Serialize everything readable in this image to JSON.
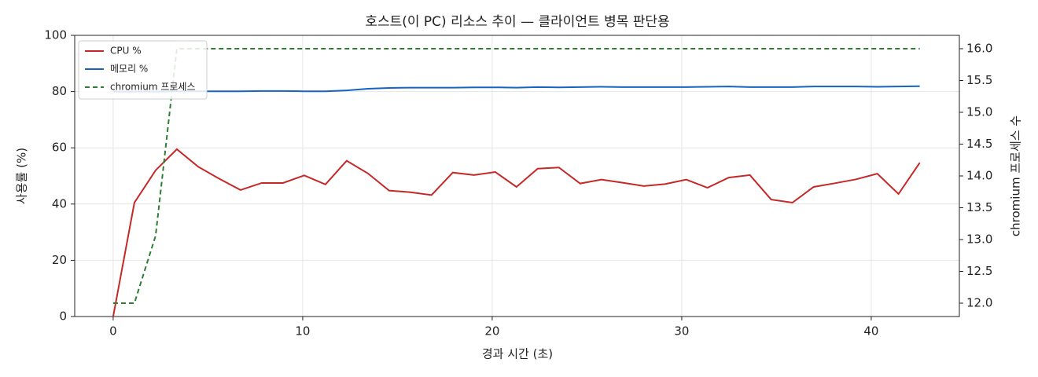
{
  "chart_data": {
    "type": "line",
    "title": "호스트(이 PC) 리소스 추이 — 클라이언트 병목 판단용",
    "x_label": "경과 시간 (초)",
    "y_label": "사용률 (%)",
    "y2_label": "chromium 프로세스 수",
    "x": [
      0,
      1.12,
      2.24,
      3.36,
      4.48,
      5.6,
      6.72,
      7.84,
      8.96,
      10.08,
      11.2,
      12.32,
      13.44,
      14.56,
      15.68,
      16.8,
      17.92,
      19.04,
      20.16,
      21.28,
      22.4,
      23.52,
      24.64,
      25.76,
      26.88,
      28,
      29.12,
      30.24,
      31.36,
      32.48,
      33.6,
      34.72,
      35.84,
      36.96,
      38.08,
      39.2,
      40.32,
      41.44,
      42.56
    ],
    "series": [
      {
        "name": "CPU %",
        "color": "#c62828",
        "style": "solid",
        "values": [
          0,
          40.5,
          52,
          59.5,
          53.3,
          49,
          45,
          47.5,
          47.5,
          50.2,
          47,
          55.4,
          50.9,
          44.8,
          44.2,
          43.2,
          51.2,
          50.3,
          51.4,
          46.1,
          52.6,
          53,
          47.3,
          48.7,
          47.6,
          46.4,
          47.1,
          48.7,
          45.8,
          49.4,
          50.3,
          41.6,
          40.5,
          46.1,
          47.4,
          48.8,
          50.8,
          43.6,
          54.7
        ]
      },
      {
        "name": "메모리 %",
        "color": "#1565c0",
        "style": "solid",
        "values": [
          80,
          80,
          80,
          80.1,
          80.1,
          80.1,
          80.1,
          80.2,
          80.2,
          80.1,
          80.1,
          80.4,
          81,
          81.3,
          81.4,
          81.4,
          81.4,
          81.5,
          81.5,
          81.4,
          81.6,
          81.5,
          81.6,
          81.7,
          81.6,
          81.6,
          81.6,
          81.6,
          81.7,
          81.8,
          81.6,
          81.6,
          81.6,
          81.8,
          81.8,
          81.8,
          81.7,
          81.8,
          81.9
        ]
      },
      {
        "name": "chromium 프로세스",
        "color": "#2e7d32",
        "style": "dashed",
        "axis": "y2",
        "values": [
          12,
          12,
          13.06,
          16,
          16,
          16,
          16,
          16,
          16,
          16,
          16,
          16,
          16,
          16,
          16,
          16,
          16,
          16,
          16,
          16,
          16,
          16,
          16,
          16,
          16,
          16,
          16,
          16,
          16,
          16,
          16,
          16,
          16,
          16,
          16,
          16,
          16,
          16,
          16
        ]
      }
    ],
    "xlim": [
      -2.03,
      44.65
    ],
    "xticks": [
      0,
      10,
      20,
      30,
      40
    ],
    "ylim": [
      0,
      100
    ],
    "yticks": [
      0,
      20,
      40,
      60,
      80,
      100
    ],
    "y2lim": [
      11.79,
      16.21
    ],
    "y2ticks": [
      {
        "value": 12,
        "label": "12.0"
      },
      {
        "value": 12.5,
        "label": "12.5"
      },
      {
        "value": 13,
        "label": "13.0"
      },
      {
        "value": 13.5,
        "label": "13.5"
      },
      {
        "value": 14,
        "label": "14.0"
      },
      {
        "value": 14.5,
        "label": "14.5"
      },
      {
        "value": 15,
        "label": "15.0"
      },
      {
        "value": 15.5,
        "label": "15.5"
      },
      {
        "value": 16,
        "label": "16.0"
      }
    ],
    "grid": true,
    "legend": "upper-left"
  }
}
